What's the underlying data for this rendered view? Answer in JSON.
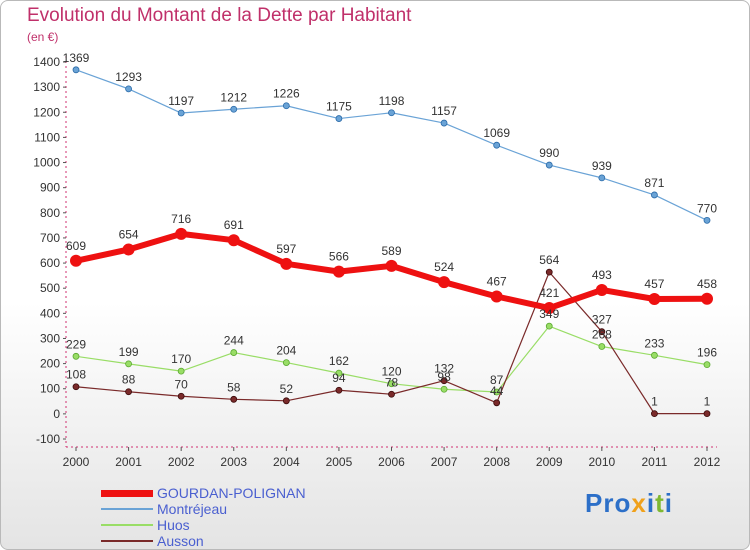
{
  "title": "Evolution du Montant de la Dette par Habitant",
  "unit": "(en €)",
  "logo": {
    "text": [
      "P",
      "r",
      "o",
      "x",
      "i",
      "t",
      "i"
    ],
    "colors": [
      "#2c6fc8",
      "#2c6fc8",
      "#2c6fc8",
      "#f0a11b",
      "#2c6fc8",
      "#7fb832",
      "#2c6fc8"
    ]
  },
  "chart_data": {
    "type": "line",
    "x": [
      "2000",
      "2001",
      "2002",
      "2003",
      "2004",
      "2005",
      "2006",
      "2007",
      "2008",
      "2009",
      "2010",
      "2011",
      "2012"
    ],
    "ylim": [
      -100,
      1400
    ],
    "yticks": [
      -100,
      0,
      100,
      200,
      300,
      400,
      500,
      600,
      700,
      800,
      900,
      1000,
      1100,
      1200,
      1300,
      1400
    ],
    "grid": false,
    "legend_position": "bottom-left",
    "series": [
      {
        "name": "GOURDAN-POLIGNAN",
        "color": "#ee1111",
        "values": [
          609,
          654,
          716,
          691,
          597,
          566,
          589,
          524,
          467,
          421,
          493,
          457,
          458
        ]
      },
      {
        "name": "Montréjeau",
        "color": "#6aa3d6",
        "values": [
          1369,
          1293,
          1197,
          1212,
          1226,
          1175,
          1198,
          1157,
          1069,
          990,
          939,
          871,
          770
        ]
      },
      {
        "name": "Huos",
        "color": "#99dd66",
        "values": [
          229,
          199,
          170,
          244,
          204,
          162,
          120,
          98,
          87,
          349,
          268,
          233,
          196
        ]
      },
      {
        "name": "Ausson",
        "color": "#7a2a2a",
        "values": [
          108,
          88,
          70,
          58,
          52,
          94,
          78,
          132,
          44,
          564,
          327,
          1,
          1
        ]
      }
    ]
  }
}
